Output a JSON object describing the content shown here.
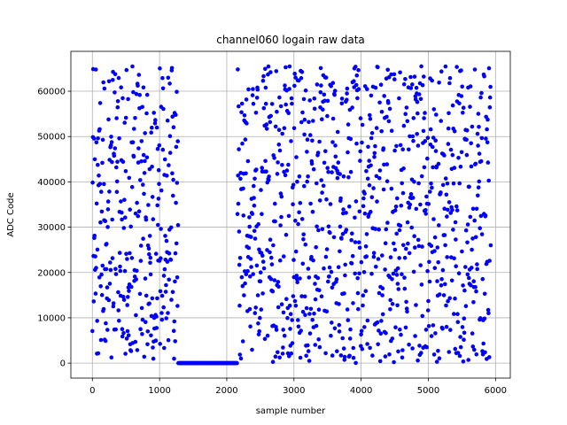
{
  "chart_data": {
    "type": "scatter",
    "title": "channel060 logain raw data",
    "xlabel": "sample number",
    "ylabel": "ADC Code",
    "xlim": [
      -320,
      6220
    ],
    "ylim": [
      -3300,
      68800
    ],
    "xticks": [
      0,
      1000,
      2000,
      3000,
      4000,
      5000,
      6000
    ],
    "yticks": [
      0,
      10000,
      20000,
      30000,
      40000,
      50000,
      60000
    ],
    "xtick_labels": [
      "0",
      "1000",
      "2000",
      "3000",
      "4000",
      "5000",
      "6000"
    ],
    "ytick_labels": [
      "0",
      "10000",
      "20000",
      "30000",
      "40000",
      "50000",
      "60000"
    ],
    "grid": true,
    "marker_color": "#0000ff",
    "series": [
      {
        "segments": [
          {
            "x_start": 0,
            "x_end": 1280,
            "step": 4,
            "pattern": "uniform",
            "y_min": 0,
            "y_max": 65535
          },
          {
            "x_start": 1280,
            "x_end": 2160,
            "step": 8,
            "pattern": "constant",
            "y": 0
          },
          {
            "x_start": 2160,
            "x_end": 5930,
            "step": 4,
            "pattern": "uniform",
            "y_min": 0,
            "y_max": 65535
          }
        ]
      }
    ]
  }
}
